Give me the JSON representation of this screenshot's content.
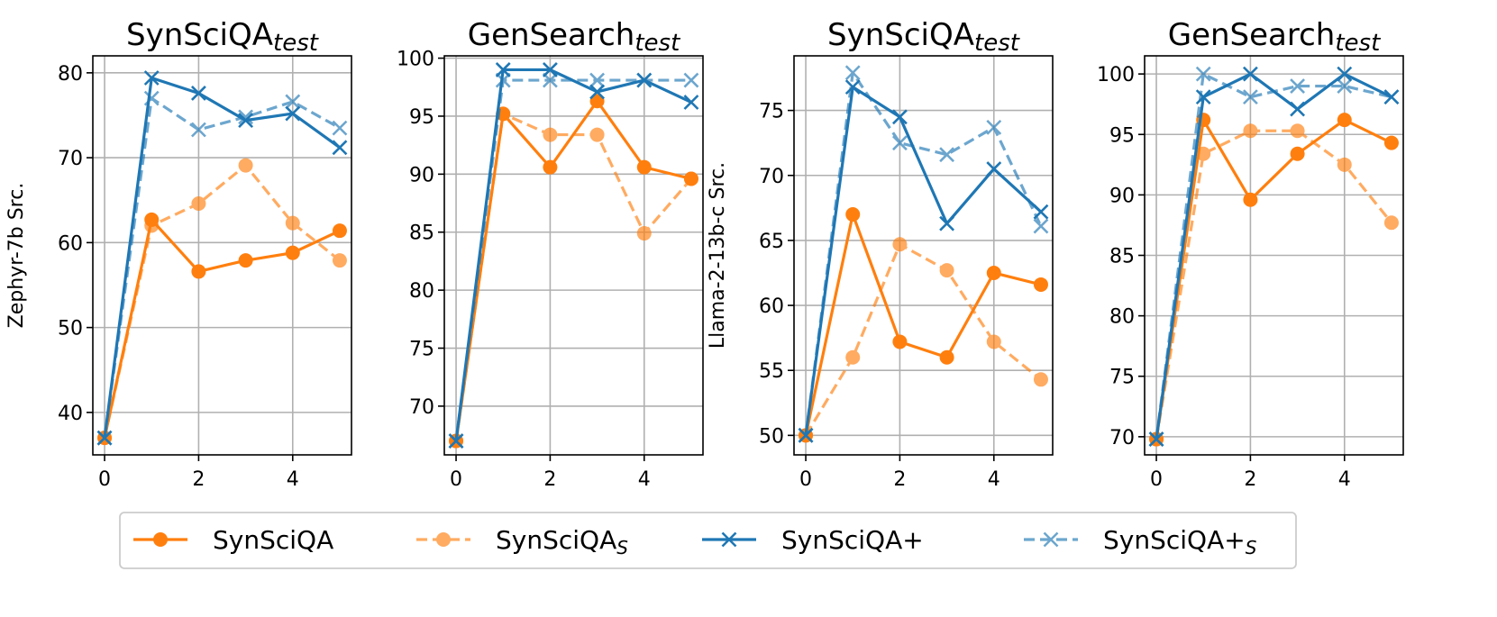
{
  "chart_data": [
    {
      "type": "line",
      "title": "SynSciQA",
      "title_sub": "test",
      "ylabel": "Zephyr-7b Src.",
      "x": [
        0,
        1,
        2,
        3,
        4,
        5
      ],
      "xticks": [
        "0",
        "2",
        "4"
      ],
      "yticks": [
        "40",
        "50",
        "60",
        "70",
        "80"
      ],
      "xlim": [
        -0.25,
        5.25
      ],
      "ylim": [
        35,
        82
      ],
      "series": [
        {
          "name": "SynSciQA",
          "values": [
            37,
            62.7,
            56.6,
            57.9,
            58.8,
            61.4
          ]
        },
        {
          "name": "SynSciQA_S",
          "values": [
            37,
            62.0,
            64.6,
            69.1,
            62.3,
            57.9
          ]
        },
        {
          "name": "SynSciQA+",
          "values": [
            37,
            79.4,
            77.6,
            74.4,
            75.2,
            71.2
          ]
        },
        {
          "name": "SynSciQA+_S",
          "values": [
            37,
            77.0,
            73.3,
            74.8,
            76.6,
            73.5
          ]
        }
      ]
    },
    {
      "type": "line",
      "title": "GenSearch",
      "title_sub": "test",
      "ylabel": "",
      "x": [
        0,
        1,
        2,
        3,
        4,
        5
      ],
      "xticks": [
        "0",
        "2",
        "4"
      ],
      "yticks": [
        "70",
        "75",
        "80",
        "85",
        "90",
        "95",
        "100"
      ],
      "xlim": [
        -0.25,
        5.25
      ],
      "ylim": [
        65.8,
        100.2
      ],
      "series": [
        {
          "name": "SynSciQA",
          "values": [
            67,
            95.2,
            90.6,
            96.3,
            90.6,
            89.6
          ]
        },
        {
          "name": "SynSciQA_S",
          "values": [
            67,
            95.2,
            93.4,
            93.4,
            84.9,
            89.6
          ]
        },
        {
          "name": "SynSciQA+",
          "values": [
            67,
            99.0,
            99.0,
            97.1,
            98.1,
            96.2
          ]
        },
        {
          "name": "SynSciQA+_S",
          "values": [
            67,
            98.1,
            98.1,
            98.1,
            98.1,
            98.1
          ]
        }
      ]
    },
    {
      "type": "line",
      "title": "SynSciQA",
      "title_sub": "test",
      "ylabel": "Llama-2-13b-c Src.",
      "x": [
        0,
        1,
        2,
        3,
        4,
        5
      ],
      "xticks": [
        "0",
        "2",
        "4"
      ],
      "yticks": [
        "50",
        "55",
        "60",
        "65",
        "70",
        "75"
      ],
      "xlim": [
        -0.25,
        5.25
      ],
      "ylim": [
        48.5,
        79.2
      ],
      "series": [
        {
          "name": "SynSciQA",
          "values": [
            50,
            67.0,
            57.2,
            56.0,
            62.5,
            61.6
          ]
        },
        {
          "name": "SynSciQA_S",
          "values": [
            50,
            56.0,
            64.7,
            62.7,
            57.2,
            54.3
          ]
        },
        {
          "name": "SynSciQA+",
          "values": [
            50,
            76.8,
            74.5,
            66.3,
            70.5,
            67.2
          ]
        },
        {
          "name": "SynSciQA+_S",
          "values": [
            50,
            77.9,
            72.5,
            71.6,
            73.7,
            66.1
          ]
        }
      ]
    },
    {
      "type": "line",
      "title": "GenSearch",
      "title_sub": "test",
      "ylabel": "",
      "x": [
        0,
        1,
        2,
        3,
        4,
        5
      ],
      "xticks": [
        "0",
        "2",
        "4"
      ],
      "yticks": [
        "70",
        "75",
        "80",
        "85",
        "90",
        "95",
        "100"
      ],
      "xlim": [
        -0.25,
        5.25
      ],
      "ylim": [
        68.5,
        101.5
      ],
      "series": [
        {
          "name": "SynSciQA",
          "values": [
            69.8,
            96.2,
            89.6,
            93.4,
            96.2,
            94.3
          ]
        },
        {
          "name": "SynSciQA_S",
          "values": [
            69.8,
            93.4,
            95.3,
            95.3,
            92.5,
            87.7
          ]
        },
        {
          "name": "SynSciQA+",
          "values": [
            69.8,
            98.1,
            100.0,
            97.1,
            100.0,
            98.1
          ]
        },
        {
          "name": "SynSciQA+_S",
          "values": [
            69.8,
            100.0,
            98.1,
            99.0,
            99.0,
            98.1
          ]
        }
      ]
    }
  ],
  "legend": {
    "items": [
      {
        "key": "SynSciQA",
        "label": "SynSciQA",
        "sub": ""
      },
      {
        "key": "SynSciQA_S",
        "label": "SynSciQA",
        "sub": "S"
      },
      {
        "key": "SynSciQA+",
        "label": "SynSciQA+",
        "sub": ""
      },
      {
        "key": "SynSciQA+_S",
        "label": "SynSciQA+",
        "sub": "S"
      }
    ]
  },
  "styles": {
    "SynSciQA": {
      "color": "#ff7f0e",
      "marker": "circle",
      "dash": false,
      "opacity": 1
    },
    "SynSciQA_S": {
      "color": "#ff7f0e",
      "marker": "circle",
      "dash": true,
      "opacity": 0.65
    },
    "SynSciQA+": {
      "color": "#1f77b4",
      "marker": "x",
      "dash": false,
      "opacity": 1
    },
    "SynSciQA+_S": {
      "color": "#1f77b4",
      "marker": "x",
      "dash": true,
      "opacity": 0.65
    }
  }
}
